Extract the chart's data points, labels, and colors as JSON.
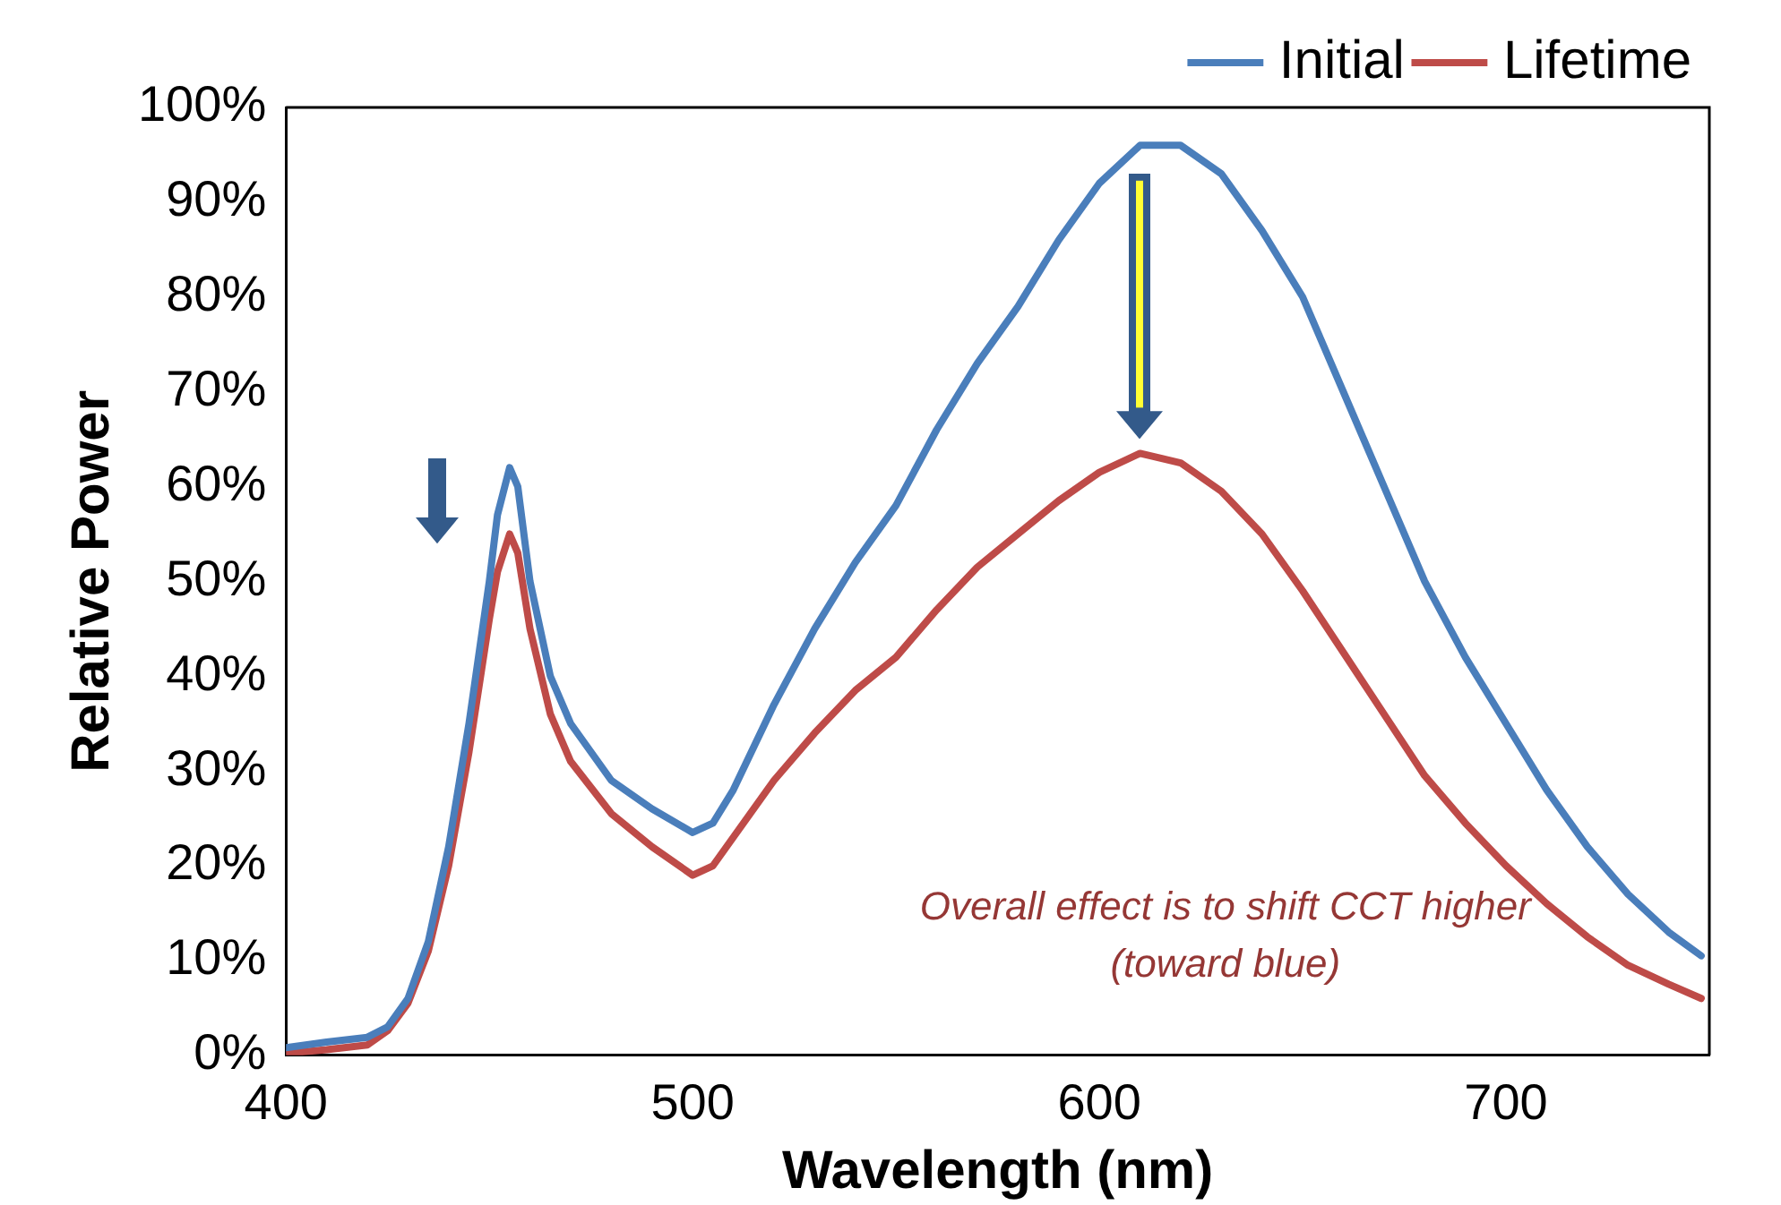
{
  "chart_data": {
    "type": "line",
    "xlabel": "Wavelength (nm)",
    "ylabel": "Relative Power",
    "x": [
      400,
      410,
      420,
      425,
      430,
      435,
      440,
      445,
      450,
      452,
      455,
      457,
      460,
      465,
      470,
      480,
      490,
      500,
      505,
      510,
      520,
      530,
      540,
      550,
      560,
      570,
      580,
      590,
      600,
      610,
      620,
      630,
      640,
      650,
      660,
      670,
      680,
      690,
      700,
      710,
      720,
      730,
      740,
      748
    ],
    "series": [
      {
        "name": "Initial",
        "color": "#4a7ebb",
        "values": [
          0.8,
          1.4,
          1.9,
          3,
          6,
          12,
          22,
          35,
          50,
          57,
          62,
          60,
          50,
          40,
          35,
          29,
          26,
          23.5,
          24.5,
          28,
          37,
          45,
          52,
          58,
          66,
          73,
          79,
          86,
          92,
          96,
          96,
          93,
          87,
          80,
          70,
          60,
          50,
          42,
          35,
          28,
          22,
          17,
          13,
          10.5
        ]
      },
      {
        "name": "Lifetime",
        "color": "#be4b48",
        "values": [
          0.2,
          0.6,
          1.1,
          2.6,
          5.5,
          11,
          20,
          32,
          46,
          51,
          55,
          53,
          45,
          36,
          31,
          25.5,
          22,
          19,
          20,
          23,
          29,
          34,
          38.5,
          42,
          47,
          51.5,
          55,
          58.5,
          61.5,
          63.5,
          62.5,
          59.5,
          55,
          49,
          42.5,
          36,
          29.5,
          24.5,
          20,
          16,
          12.5,
          9.5,
          7.5,
          6
        ]
      }
    ],
    "xlim": [
      400,
      750
    ],
    "xticks": [
      400,
      500,
      600,
      700
    ],
    "ylim": [
      0,
      100
    ],
    "yticks": [
      {
        "value": 0,
        "label": "0%"
      },
      {
        "value": 10,
        "label": "10%"
      },
      {
        "value": 20,
        "label": "20%"
      },
      {
        "value": 30,
        "label": "30%"
      },
      {
        "value": 40,
        "label": "40%"
      },
      {
        "value": 50,
        "label": "50%"
      },
      {
        "value": 60,
        "label": "60%"
      },
      {
        "value": 70,
        "label": "70%"
      },
      {
        "value": 80,
        "label": "80%"
      },
      {
        "value": 90,
        "label": "90%"
      },
      {
        "value": 100,
        "label": "100%"
      }
    ],
    "annotations": [
      "Overall effect is to shift CCT higher (toward blue)"
    ],
    "legend": "top right",
    "grid": false,
    "marker": "none",
    "line_style": "solid"
  }
}
